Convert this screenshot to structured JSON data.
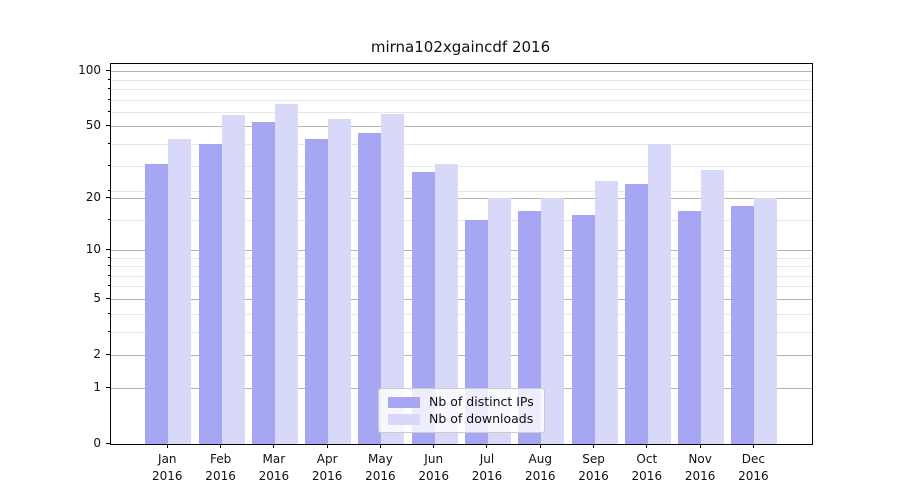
{
  "chart_data": {
    "type": "bar",
    "title": "mirna102xgaincdf 2016",
    "categories": [
      "Jan",
      "Feb",
      "Mar",
      "Apr",
      "May",
      "Jun",
      "Jul",
      "Aug",
      "Sep",
      "Oct",
      "Nov",
      "Dec"
    ],
    "category_year": "2016",
    "series": [
      {
        "name": "Nb of distinct IPs",
        "color": "#a6a6f3",
        "values": [
          31,
          40,
          53,
          43,
          46,
          28,
          15,
          17,
          16,
          24,
          17,
          18
        ]
      },
      {
        "name": "Nb of downloads",
        "color": "#d8d8f8",
        "values": [
          43,
          58,
          67,
          55,
          59,
          31,
          20,
          20,
          25,
          40,
          29,
          20
        ]
      }
    ],
    "y_axis": {
      "scale": "log10(1+v)",
      "tick_labels": [
        0,
        1,
        2,
        5,
        10,
        20,
        50,
        100
      ],
      "minor_ticks": [
        3,
        4,
        6,
        7,
        8,
        9,
        15,
        22,
        30,
        40,
        60,
        70,
        80,
        90
      ],
      "max": 110
    },
    "x_axis": {
      "tick_labels_line1": [
        "Jan",
        "Feb",
        "Mar",
        "Apr",
        "May",
        "Jun",
        "Jul",
        "Aug",
        "Sep",
        "Oct",
        "Nov",
        "Dec"
      ],
      "tick_labels_line2": "2016"
    },
    "grid": {
      "major_color": "#b2b2b2",
      "minor_color": "#e7e7e7"
    },
    "legend": {
      "position": "lower-center-inside"
    }
  }
}
